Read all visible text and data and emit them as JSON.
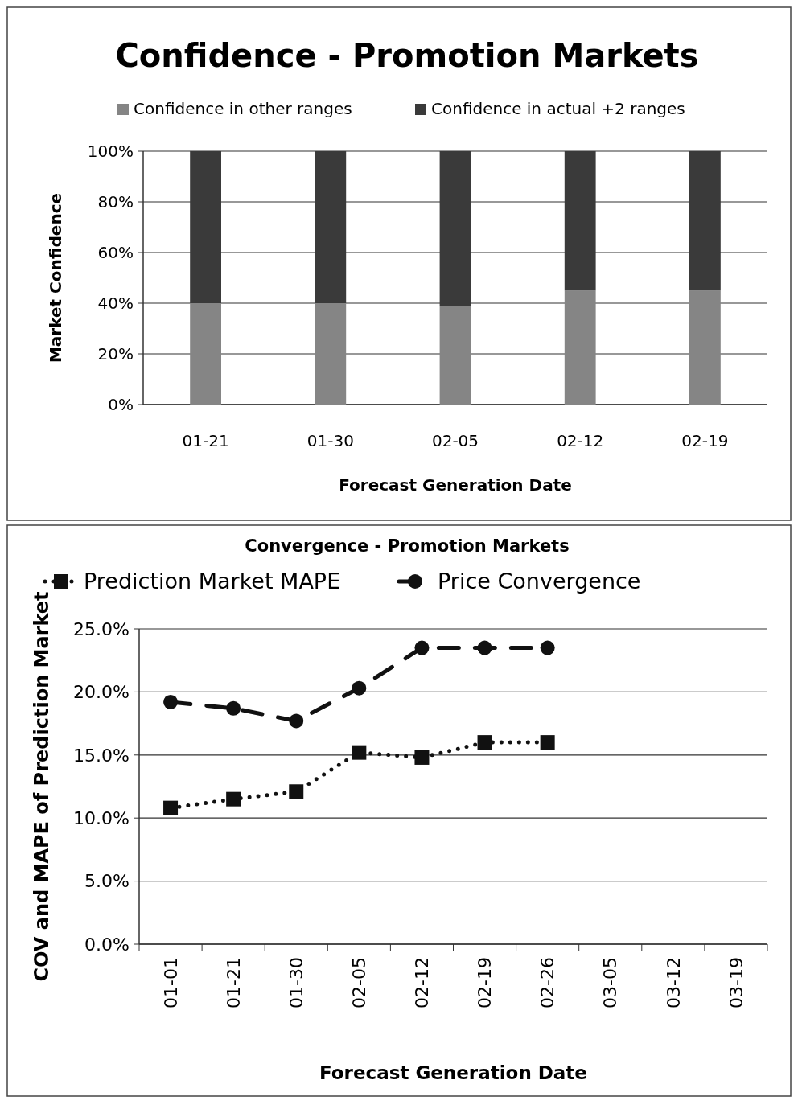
{
  "chart_data": [
    {
      "type": "bar",
      "title": "Confidence - Promotion Markets",
      "xlabel": "Forecast Generation Date",
      "ylabel": "Market Confidence",
      "categories": [
        "01-21",
        "01-30",
        "02-05",
        "02-12",
        "02-19"
      ],
      "stacked": true,
      "series": [
        {
          "name": "Confidence in other ranges",
          "color": "#858585",
          "values": [
            40,
            40,
            39,
            45,
            45
          ]
        },
        {
          "name": "Confidence in actual +2 ranges",
          "color": "#3a3a3a",
          "values": [
            60,
            60,
            61,
            55,
            55
          ]
        }
      ],
      "ylim": [
        0,
        100
      ],
      "yticks": [
        {
          "value": 0,
          "label": "0%"
        },
        {
          "value": 20,
          "label": "20%"
        },
        {
          "value": 40,
          "label": "40%"
        },
        {
          "value": 60,
          "label": "60%"
        },
        {
          "value": 80,
          "label": "80%"
        },
        {
          "value": 100,
          "label": "100%"
        }
      ],
      "grid": "y",
      "legend": "top"
    },
    {
      "type": "line",
      "title": "Convergence - Promotion Markets",
      "xlabel": "Forecast Generation Date",
      "ylabel": "COV and MAPE of Prediction Market",
      "categories": [
        "01-01",
        "01-21",
        "01-30",
        "02-05",
        "02-12",
        "02-19",
        "02-26",
        "03-05",
        "03-12",
        "03-19"
      ],
      "series": [
        {
          "name": "Prediction Market MAPE",
          "color": "#111111",
          "marker": "square",
          "line_style": "dotted",
          "values": [
            10.8,
            11.5,
            12.1,
            15.2,
            14.8,
            16.0,
            16.0,
            null,
            null,
            null
          ]
        },
        {
          "name": "Price Convergence",
          "color": "#111111",
          "marker": "circle",
          "line_style": "dashed",
          "values": [
            19.2,
            18.7,
            17.7,
            20.3,
            23.5,
            23.5,
            23.5,
            null,
            null,
            null
          ]
        }
      ],
      "ylim": [
        0,
        25
      ],
      "yticks": [
        {
          "value": 0,
          "label": "0.0%"
        },
        {
          "value": 5,
          "label": "5.0%"
        },
        {
          "value": 10,
          "label": "10.0%"
        },
        {
          "value": 15,
          "label": "15.0%"
        },
        {
          "value": 20,
          "label": "20.0%"
        },
        {
          "value": 25,
          "label": "25.0%"
        }
      ],
      "grid": "y",
      "legend": "top"
    }
  ]
}
